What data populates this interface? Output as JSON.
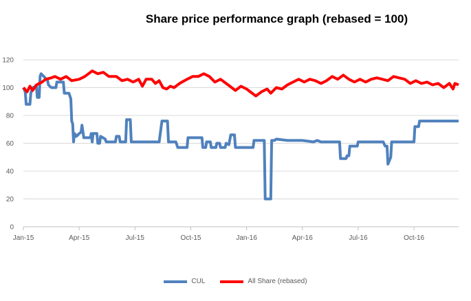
{
  "chart_data": {
    "type": "line",
    "title": "Share price performance graph (rebased = 100)",
    "xlabel": "",
    "ylabel": "",
    "ylim": [
      0,
      120
    ],
    "yticks": [
      0,
      20,
      40,
      60,
      80,
      100,
      120
    ],
    "xlim": [
      0,
      23.4
    ],
    "xtick_labels": [
      {
        "label": "Jan-15",
        "t": 0
      },
      {
        "label": "Apr-15",
        "t": 3
      },
      {
        "label": "Jul-15",
        "t": 6
      },
      {
        "label": "Oct-15",
        "t": 9
      },
      {
        "label": "Jan-16",
        "t": 12
      },
      {
        "label": "Apr-16",
        "t": 15
      },
      {
        "label": "Jul-16",
        "t": 18
      },
      {
        "label": "Oct-16",
        "t": 21
      }
    ],
    "grid": true,
    "legend_position": "bottom",
    "series": [
      {
        "name": "CUL",
        "color": "#4f81bd",
        "points": [
          [
            0,
            100
          ],
          [
            0.1,
            97
          ],
          [
            0.15,
            88
          ],
          [
            0.35,
            88
          ],
          [
            0.4,
            96
          ],
          [
            0.5,
            100
          ],
          [
            0.7,
            101
          ],
          [
            0.75,
            93
          ],
          [
            0.85,
            93
          ],
          [
            0.9,
            108
          ],
          [
            0.95,
            110
          ],
          [
            1.1,
            108
          ],
          [
            1.3,
            105
          ],
          [
            1.35,
            102
          ],
          [
            1.5,
            100
          ],
          [
            1.75,
            100
          ],
          [
            1.8,
            104
          ],
          [
            2.15,
            104
          ],
          [
            2.2,
            96
          ],
          [
            2.45,
            96
          ],
          [
            2.55,
            92
          ],
          [
            2.6,
            76
          ],
          [
            2.65,
            74
          ],
          [
            2.7,
            61
          ],
          [
            2.75,
            67
          ],
          [
            2.85,
            65
          ],
          [
            3.0,
            67
          ],
          [
            3.1,
            68
          ],
          [
            3.15,
            73
          ],
          [
            3.25,
            64
          ],
          [
            3.6,
            64
          ],
          [
            3.65,
            67
          ],
          [
            3.7,
            61
          ],
          [
            3.75,
            67
          ],
          [
            3.95,
            67
          ],
          [
            4.0,
            60
          ],
          [
            4.1,
            60
          ],
          [
            4.15,
            65
          ],
          [
            4.4,
            63
          ],
          [
            4.45,
            61
          ],
          [
            4.95,
            61
          ],
          [
            5.0,
            65
          ],
          [
            5.15,
            65
          ],
          [
            5.2,
            61
          ],
          [
            5.5,
            61
          ],
          [
            5.55,
            77
          ],
          [
            5.75,
            77
          ],
          [
            5.8,
            61
          ],
          [
            7.3,
            61
          ],
          [
            7.45,
            76
          ],
          [
            7.75,
            76
          ],
          [
            7.8,
            61
          ],
          [
            8.2,
            61
          ],
          [
            8.3,
            57
          ],
          [
            8.8,
            57
          ],
          [
            8.85,
            64
          ],
          [
            9.6,
            64
          ],
          [
            9.65,
            57
          ],
          [
            9.8,
            57
          ],
          [
            9.85,
            61
          ],
          [
            10.05,
            61
          ],
          [
            10.1,
            57
          ],
          [
            10.35,
            57
          ],
          [
            10.4,
            60
          ],
          [
            10.55,
            60
          ],
          [
            10.6,
            57
          ],
          [
            10.85,
            57
          ],
          [
            10.9,
            60
          ],
          [
            11.05,
            59
          ],
          [
            11.15,
            66
          ],
          [
            11.35,
            66
          ],
          [
            11.4,
            57
          ],
          [
            12.0,
            57
          ],
          [
            12.35,
            57
          ],
          [
            12.4,
            62
          ],
          [
            12.95,
            62
          ],
          [
            13.0,
            20
          ],
          [
            13.3,
            20
          ],
          [
            13.35,
            62
          ],
          [
            13.5,
            62
          ],
          [
            13.6,
            63
          ],
          [
            14.2,
            62
          ],
          [
            15.0,
            62
          ],
          [
            15.6,
            61
          ],
          [
            15.8,
            62
          ],
          [
            16.0,
            61
          ],
          [
            17.0,
            61
          ],
          [
            17.05,
            49
          ],
          [
            17.35,
            49
          ],
          [
            17.4,
            51
          ],
          [
            17.5,
            51
          ],
          [
            17.55,
            58
          ],
          [
            17.95,
            58
          ],
          [
            18.0,
            61
          ],
          [
            19.35,
            61
          ],
          [
            19.45,
            58
          ],
          [
            19.55,
            58
          ],
          [
            19.6,
            45
          ],
          [
            19.75,
            50
          ],
          [
            19.8,
            61
          ],
          [
            21.0,
            61
          ],
          [
            21.05,
            72
          ],
          [
            21.25,
            72
          ],
          [
            21.3,
            76
          ],
          [
            23.4,
            76
          ]
        ]
      },
      {
        "name": "All Share (rebased)",
        "color": "#ff0000",
        "points": [
          [
            0,
            100
          ],
          [
            0.2,
            97
          ],
          [
            0.35,
            101
          ],
          [
            0.5,
            98
          ],
          [
            0.7,
            102
          ],
          [
            1.0,
            104
          ],
          [
            1.2,
            106
          ],
          [
            1.5,
            107
          ],
          [
            1.7,
            108
          ],
          [
            2.0,
            106
          ],
          [
            2.3,
            108
          ],
          [
            2.6,
            105
          ],
          [
            3.0,
            106
          ],
          [
            3.3,
            108
          ],
          [
            3.5,
            110
          ],
          [
            3.7,
            112
          ],
          [
            4.0,
            110
          ],
          [
            4.3,
            111
          ],
          [
            4.6,
            108
          ],
          [
            5.0,
            108
          ],
          [
            5.3,
            105
          ],
          [
            5.6,
            106
          ],
          [
            5.9,
            104
          ],
          [
            6.2,
            106
          ],
          [
            6.4,
            101
          ],
          [
            6.6,
            106
          ],
          [
            6.9,
            106
          ],
          [
            7.1,
            103
          ],
          [
            7.3,
            105
          ],
          [
            7.5,
            100
          ],
          [
            7.7,
            99
          ],
          [
            7.9,
            101
          ],
          [
            8.1,
            100
          ],
          [
            8.4,
            103
          ],
          [
            8.8,
            106
          ],
          [
            9.1,
            108
          ],
          [
            9.4,
            108
          ],
          [
            9.7,
            110
          ],
          [
            10.0,
            108
          ],
          [
            10.3,
            104
          ],
          [
            10.6,
            106
          ],
          [
            10.9,
            103
          ],
          [
            11.2,
            100
          ],
          [
            11.4,
            98
          ],
          [
            11.7,
            101
          ],
          [
            12.0,
            99
          ],
          [
            12.3,
            96
          ],
          [
            12.5,
            94
          ],
          [
            12.8,
            97
          ],
          [
            13.1,
            99
          ],
          [
            13.3,
            96
          ],
          [
            13.6,
            100
          ],
          [
            13.9,
            99
          ],
          [
            14.2,
            102
          ],
          [
            14.5,
            104
          ],
          [
            14.8,
            106
          ],
          [
            15.1,
            104
          ],
          [
            15.4,
            106
          ],
          [
            15.7,
            105
          ],
          [
            16.0,
            103
          ],
          [
            16.3,
            105
          ],
          [
            16.6,
            108
          ],
          [
            16.9,
            106
          ],
          [
            17.2,
            109
          ],
          [
            17.5,
            106
          ],
          [
            17.8,
            104
          ],
          [
            18.1,
            106
          ],
          [
            18.4,
            104
          ],
          [
            18.7,
            106
          ],
          [
            19.0,
            107
          ],
          [
            19.3,
            106
          ],
          [
            19.6,
            105
          ],
          [
            19.9,
            108
          ],
          [
            20.2,
            107
          ],
          [
            20.5,
            106
          ],
          [
            20.8,
            103
          ],
          [
            21.1,
            105
          ],
          [
            21.4,
            103
          ],
          [
            21.7,
            104
          ],
          [
            22.0,
            102
          ],
          [
            22.3,
            103
          ],
          [
            22.6,
            100
          ],
          [
            22.9,
            103
          ],
          [
            23.1,
            99
          ],
          [
            23.2,
            103
          ],
          [
            23.4,
            102
          ]
        ]
      }
    ]
  }
}
